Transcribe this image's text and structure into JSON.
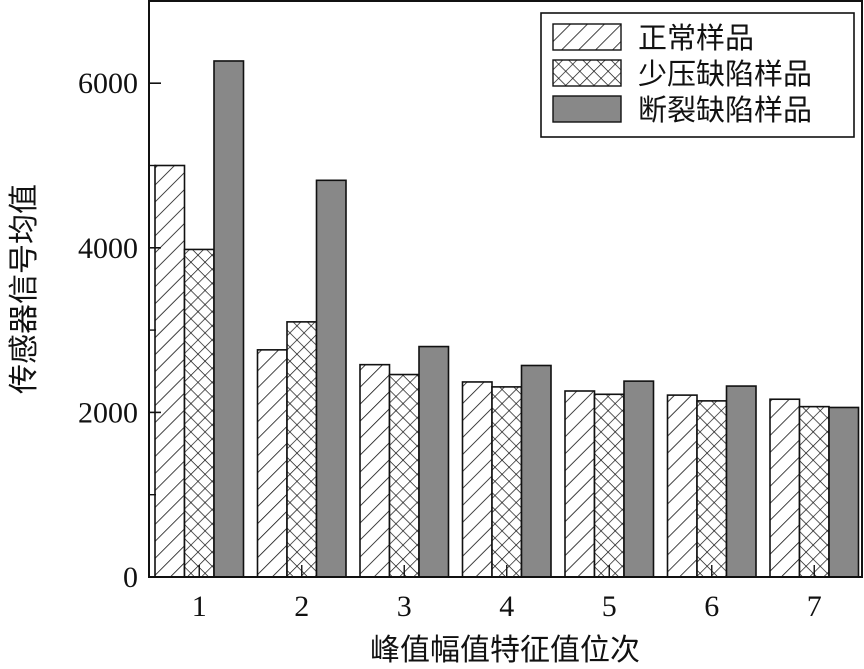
{
  "chart_data": {
    "type": "bar",
    "title": "",
    "xlabel": "峰值幅值特征值位次",
    "ylabel": "传感器信号均值",
    "categories": [
      "1",
      "2",
      "3",
      "4",
      "5",
      "6",
      "7"
    ],
    "ylim": [
      0,
      7000
    ],
    "yticks": [
      0,
      2000,
      4000,
      6000
    ],
    "grid": false,
    "legend_position": "upper right",
    "series": [
      {
        "name": "正常样品",
        "pattern": "diagonal-hatch",
        "values": [
          5000,
          2760,
          2580,
          2370,
          2260,
          2210,
          2160
        ]
      },
      {
        "name": "少压缺陷样品",
        "pattern": "cross-hatch",
        "values": [
          3980,
          3100,
          2460,
          2310,
          2220,
          2140,
          2070
        ]
      },
      {
        "name": "断裂缺陷样品",
        "pattern": "solid-gray",
        "color": "#888888",
        "values": [
          6270,
          4820,
          2800,
          2570,
          2380,
          2320,
          2060
        ]
      }
    ]
  }
}
